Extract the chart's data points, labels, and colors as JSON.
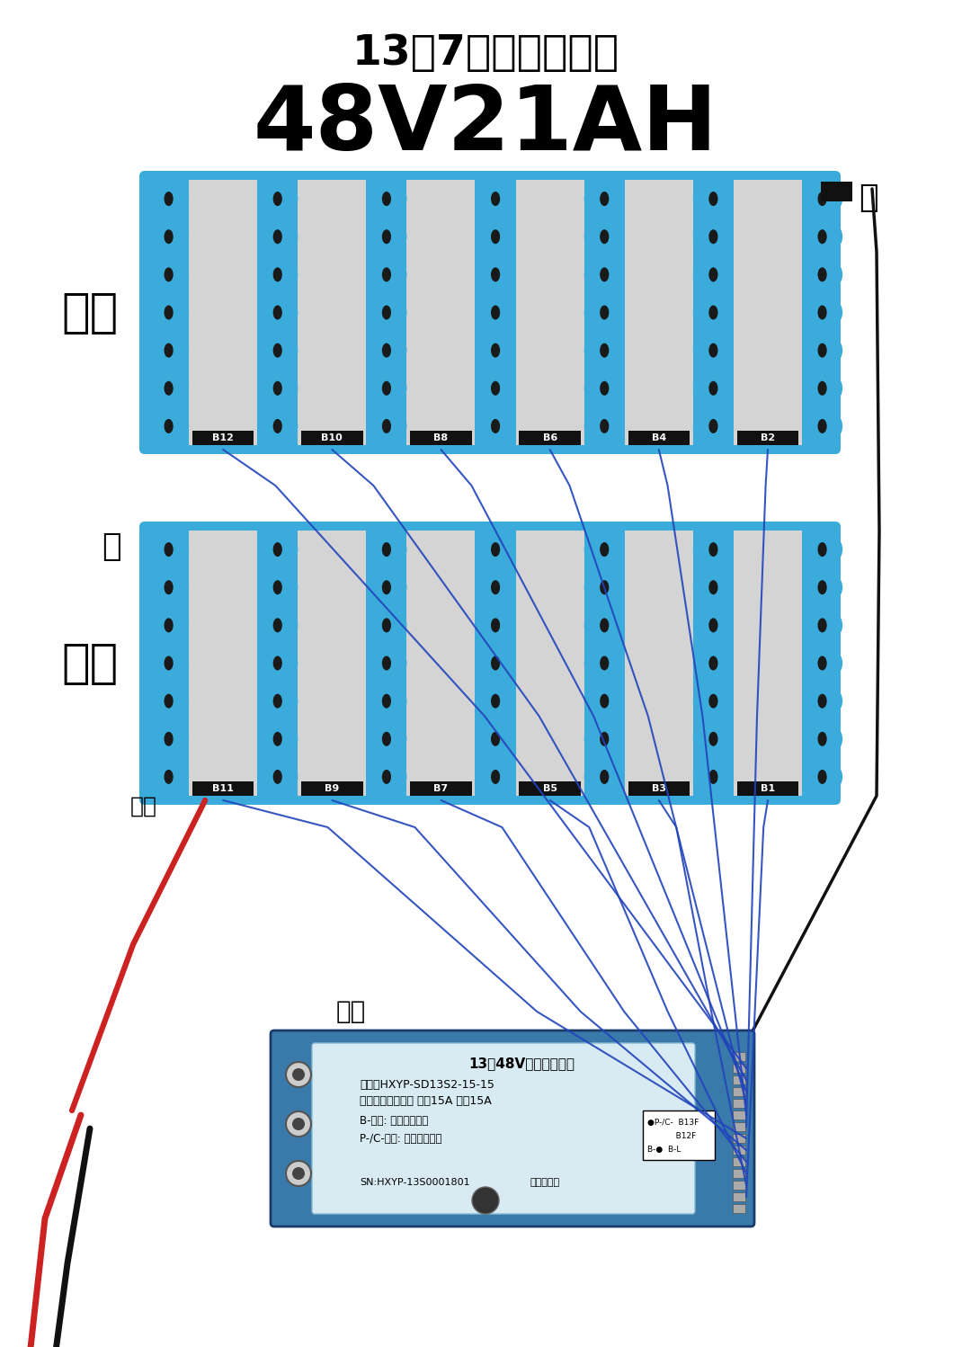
{
  "title1": "13串7并组装示意图",
  "title2": "48V21AH",
  "bg_color": "#ffffff",
  "blue": "#3aabdb",
  "gray": "#d4d4d4",
  "dark_center": "#222222",
  "top_labels": [
    "B12",
    "B10",
    "B8",
    "B6",
    "B4",
    "B2"
  ],
  "bot_labels": [
    "B11",
    "B9",
    "B7",
    "B5",
    "B3",
    "B1"
  ],
  "top_label": "下面",
  "bot_label": "上面",
  "pos_label": "+",
  "neg_label": "-",
  "total_pos": "总正",
  "total_neg": "总负",
  "wire_blue": "#2244bb",
  "wire_red": "#cc2222",
  "wire_black": "#111111",
  "bms_blue": "#4a9cc8",
  "bms_light": "#c8dde8",
  "bms_border": "#2255aa",
  "pcb_title": "13串48V锂电池保护板",
  "pcb_line1": "型号：HXYP-SD13S2-15-15",
  "pcb_line2": "规格：三元锂同口 充电15A 放电15A",
  "pcb_line3": "B-黑线: 接电池总负极",
  "pcb_line4": "P-/C-蓝线: 接充放电负极",
  "pcb_line5": "●P-/C-  B13F",
  "pcb_line6": "         B12F",
  "pcb_line7": "B-●  B-L",
  "pcb_sn": "SN:HXYP-13S0001801",
  "pcb_jx": "接线示意图"
}
